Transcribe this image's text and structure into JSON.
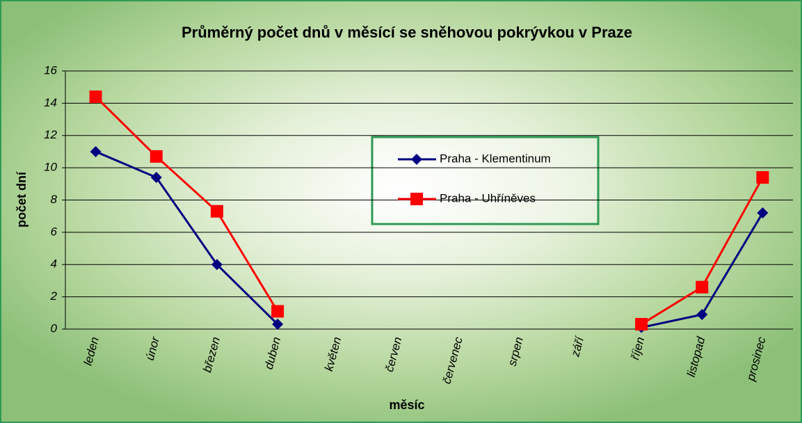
{
  "chart_data": {
    "type": "line",
    "title": "Průměrný počet dnů v měsící se sněhovou pokrývkou v Praze",
    "x_label": "měsíc",
    "y_label": "počet dní",
    "categories": [
      "leden",
      "únor",
      "březen",
      "duben",
      "květen",
      "červen",
      "červenec",
      "srpen",
      "září",
      "říjen",
      "listopad",
      "prosinec"
    ],
    "series": [
      {
        "name": "Praha - Klementinum",
        "color": "#000080",
        "marker": "diamond",
        "values": [
          11.0,
          9.4,
          4.0,
          0.3,
          null,
          null,
          null,
          null,
          null,
          0.1,
          0.9,
          7.2
        ]
      },
      {
        "name": "Praha - Uhříněves",
        "color": "#ff0000",
        "marker": "square",
        "values": [
          14.4,
          10.7,
          7.3,
          1.1,
          null,
          null,
          null,
          null,
          null,
          0.3,
          2.6,
          9.4
        ]
      }
    ],
    "ylim": [
      0,
      16
    ],
    "yticks": [
      0,
      2,
      4,
      6,
      8,
      10,
      12,
      14,
      16
    ],
    "grid": true
  }
}
